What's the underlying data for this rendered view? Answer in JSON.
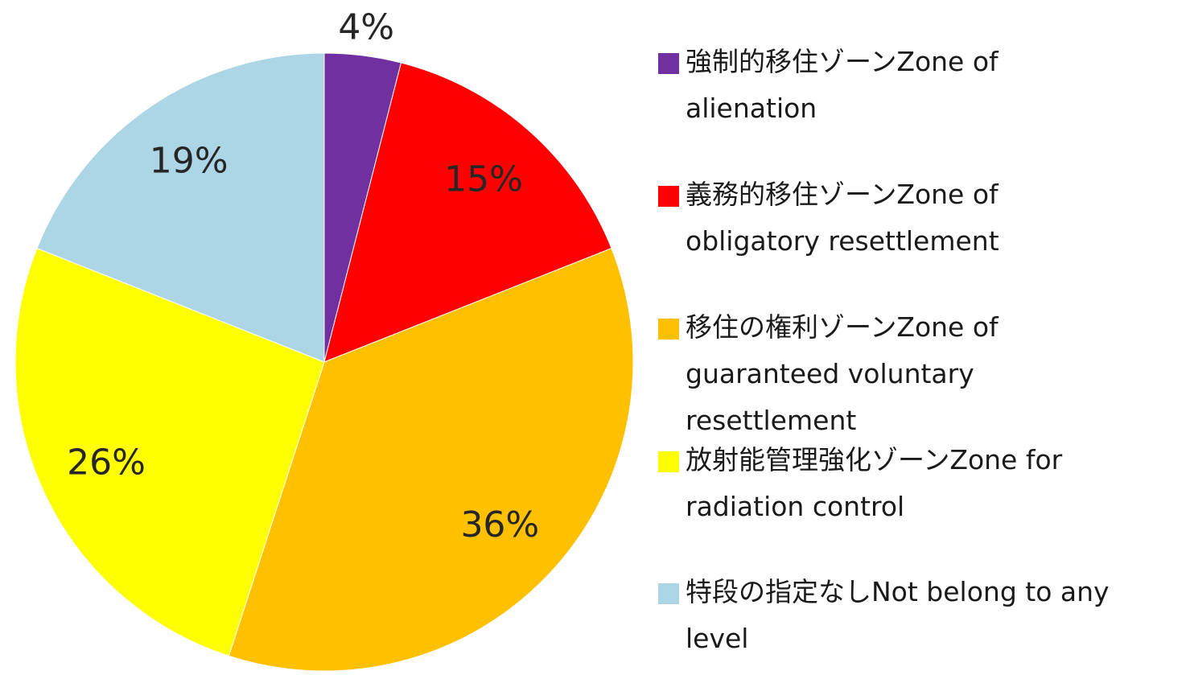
{
  "chart_data": {
    "type": "pie",
    "categories": [
      "強制的移住ゾーンZone of alienation",
      "義務的移住ゾーンZone of obligatory resettlement",
      "移住の権利ゾーンZone of guaranteed voluntary resettlement",
      "放射能管理強化ゾーンZone for radiation control",
      "特段の指定なしNot belong to any level"
    ],
    "values": [
      4,
      15,
      36,
      26,
      19
    ],
    "value_labels": [
      "4%",
      "15%",
      "36%",
      "26%",
      "19%"
    ],
    "colors": [
      "#7030a0",
      "#ff0000",
      "#ffc000",
      "#ffff00",
      "#acd5e6"
    ],
    "legend": "right"
  }
}
